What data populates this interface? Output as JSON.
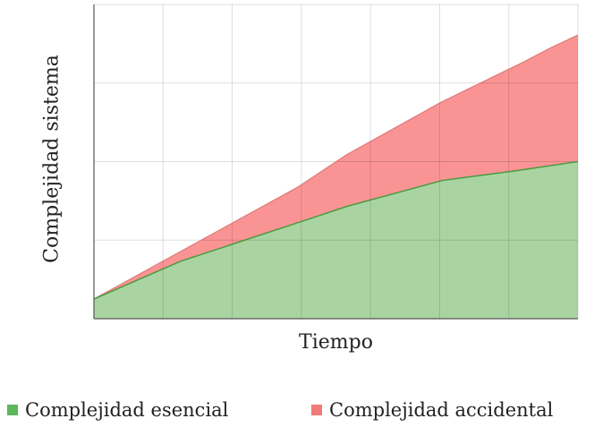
{
  "chart_data": {
    "type": "area",
    "stacked": true,
    "title": "",
    "xlabel": "Tiempo",
    "ylabel": "Complejidad sistema",
    "xlim": [
      0,
      7
    ],
    "ylim": [
      0,
      4
    ],
    "grid": true,
    "tick_labels": false,
    "legend_position": "bottom",
    "series": [
      {
        "name": "Complejidad esencial",
        "color": "#a9d4a1",
        "line_color": "#4a9a3f",
        "x": [
          0,
          1.25,
          3.08,
          3.66,
          5.04,
          6.08,
          7
        ],
        "y": [
          0.25,
          0.73,
          1.26,
          1.43,
          1.76,
          1.88,
          2.0
        ]
      },
      {
        "name": "Complejidad accidental",
        "color": "#fa9494",
        "line_color": "#e07878",
        "top_x": [
          0,
          2.94,
          3.66,
          5.01,
          6.22,
          6.61,
          7
        ],
        "top_y": [
          0.25,
          1.67,
          2.09,
          2.75,
          3.27,
          3.45,
          3.61
        ]
      }
    ]
  }
}
